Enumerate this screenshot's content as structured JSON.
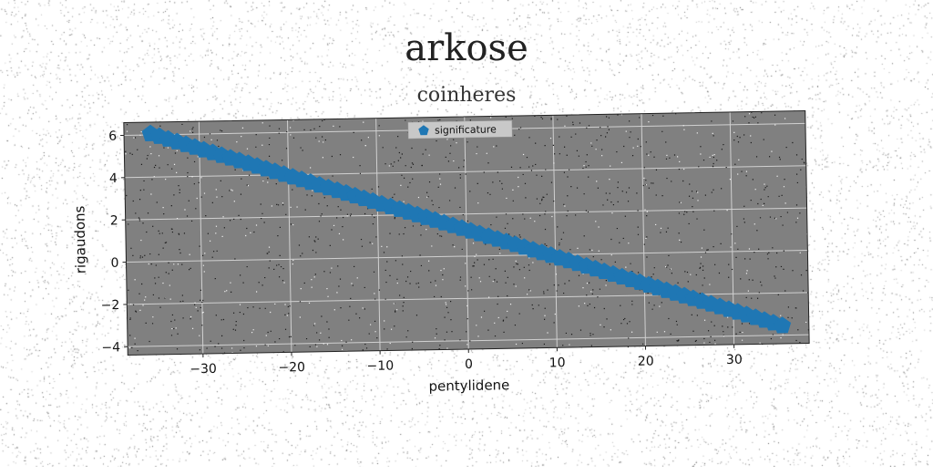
{
  "title": "arkose",
  "subtitle": "coinheres",
  "chart_data": {
    "type": "scatter",
    "title": "arkose",
    "subtitle": "coinheres",
    "xlabel": "pentylidene",
    "ylabel": "rigaudons",
    "xlim": [
      -38.5,
      38.5
    ],
    "ylim": [
      -4.4,
      6.6
    ],
    "xticks": [
      -30,
      -20,
      -10,
      0,
      10,
      20,
      30
    ],
    "yticks": [
      -4,
      -2,
      0,
      2,
      4,
      6
    ],
    "grid": true,
    "legend_position": "top-center",
    "background_color": "#808080",
    "series": [
      {
        "name": "significature",
        "marker": "pentagon",
        "color": "#1f77b4",
        "x_start": -35.5,
        "x_end": 35.5,
        "count": 72,
        "y_start": 6.05,
        "y_end": -3.55
      }
    ]
  }
}
